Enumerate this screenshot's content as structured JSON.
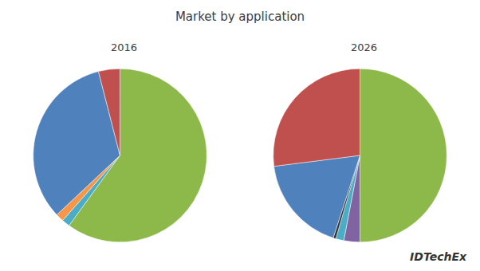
{
  "title": "Market by application",
  "annotations": [
    "IDTechEx"
  ],
  "chart_data": [
    {
      "type": "pie",
      "title": "2016",
      "values": [
        60,
        1.5,
        1.5,
        33,
        4
      ],
      "colors": [
        "#8db84a",
        "#4bacc6",
        "#f79646",
        "#4f81bd",
        "#c0504d"
      ],
      "data_labels": false,
      "legend": false
    },
    {
      "type": "pie",
      "title": "2026",
      "values": [
        50,
        3,
        1.5,
        0.5,
        18,
        27
      ],
      "colors": [
        "#8db84a",
        "#8064a2",
        "#4bacc6",
        "#333333",
        "#4f81bd",
        "#c0504d"
      ],
      "data_labels": false,
      "legend": false
    }
  ]
}
